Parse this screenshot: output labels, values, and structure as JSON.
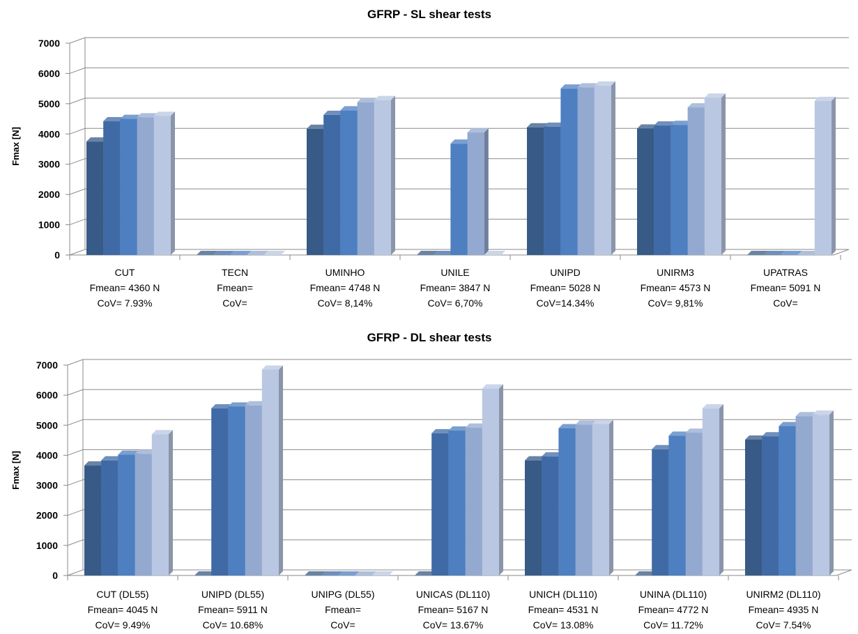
{
  "series_colors": [
    "#375a86",
    "#3f6aa6",
    "#4d7fc1",
    "#93a9d0",
    "#b9c7e2"
  ],
  "chart_data": [
    {
      "type": "bar",
      "title": "GFRP - SL shear tests",
      "ylabel": "Fmax [N]",
      "ylim": [
        0,
        7000
      ],
      "yticks": [
        "0",
        "1000",
        "2000",
        "3000",
        "4000",
        "5000",
        "6000",
        "7000"
      ],
      "grid": true,
      "categories": [
        {
          "name": "CUT",
          "fmean": "Fmean= 4360 N",
          "cov": "CoV= 7.93%",
          "values": [
            3750,
            4420,
            4500,
            4550,
            4600
          ]
        },
        {
          "name": "TECN",
          "fmean": "Fmean=",
          "cov": "CoV=",
          "values": [
            0,
            0,
            0,
            0,
            0
          ]
        },
        {
          "name": "UMINHO",
          "fmean": "Fmean= 4748 N",
          "cov": "CoV= 8,14%",
          "values": [
            4170,
            4630,
            4780,
            5050,
            5120
          ]
        },
        {
          "name": "UNILE",
          "fmean": "Fmean= 3847 N",
          "cov": "CoV= 6,70%",
          "values": [
            0,
            0,
            3680,
            4050,
            0
          ]
        },
        {
          "name": "UNIPD",
          "fmean": "Fmean=  5028 N",
          "cov": "CoV=14.34%",
          "values": [
            4220,
            4240,
            5500,
            5540,
            5600
          ]
        },
        {
          "name": "UNIRM3",
          "fmean": "Fmean= 4573 N",
          "cov": "CoV= 9,81%",
          "values": [
            4180,
            4280,
            4300,
            4880,
            5200
          ]
        },
        {
          "name": "UPATRAS",
          "fmean": "Fmean=  5091 N",
          "cov": "CoV=",
          "values": [
            0,
            0,
            0,
            0,
            5091
          ]
        }
      ]
    },
    {
      "type": "bar",
      "title": "GFRP - DL shear tests",
      "ylabel": "Fmax [N]",
      "ylim": [
        0,
        7000
      ],
      "yticks": [
        "0",
        "1000",
        "2000",
        "3000",
        "4000",
        "5000",
        "6000",
        "7000"
      ],
      "grid": true,
      "categories": [
        {
          "name": "CUT (DL55)",
          "fmean": "Fmean= 4045 N",
          "cov": "CoV= 9.49%",
          "values": [
            3660,
            3830,
            4020,
            4050,
            4700
          ]
        },
        {
          "name": "UNIPD (DL55)",
          "fmean": "Fmean= 5911 N",
          "cov": "CoV= 10.68%",
          "values": [
            0,
            5560,
            5620,
            5660,
            6850
          ]
        },
        {
          "name": "UNIPG (DL55)",
          "fmean": "Fmean=",
          "cov": "CoV=",
          "values": [
            0,
            0,
            0,
            0,
            0
          ]
        },
        {
          "name": "UNICAS (DL110)",
          "fmean": "Fmean= 5167 N",
          "cov": "CoV= 13.67%",
          "values": [
            0,
            4730,
            4820,
            4920,
            6220
          ]
        },
        {
          "name": "UNICH (DL110)",
          "fmean": "Fmean= 4531 N",
          "cov": "CoV= 13.08%",
          "values": [
            3830,
            3960,
            4900,
            5020,
            5040
          ]
        },
        {
          "name": "UNINA (DL110)",
          "fmean": "Fmean= 4772 N",
          "cov": "CoV= 11.72%",
          "values": [
            0,
            4200,
            4650,
            4750,
            5560
          ]
        },
        {
          "name": "UNIRM2 (DL110)",
          "fmean": "Fmean= 4935 N",
          "cov": "CoV= 7.54%",
          "values": [
            4520,
            4630,
            4970,
            5300,
            5350
          ]
        }
      ]
    }
  ]
}
